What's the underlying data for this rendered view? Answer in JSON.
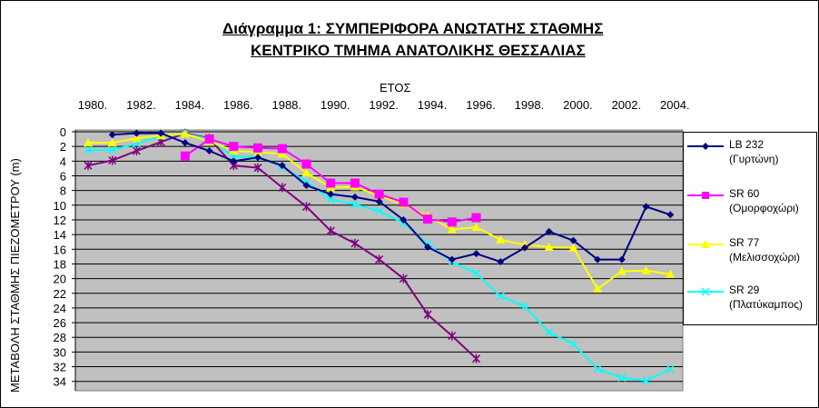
{
  "title_line1": "Διάγραμμα 1: ΣΥΜΠΕΡΙΦΟΡΑ ΑΝΩΤΑΤΗΣ ΣΤΑΘΜΗΣ",
  "title_line2": "ΚΕΝΤΡΙΚΟ ΤΜΗΜΑ ΑΝΑΤΟΛΙΚΗΣ ΘΕΣΣΑΛΙΑΣ",
  "chart_data": {
    "type": "line",
    "title": "Διάγραμμα 1: ΣΥΜΠΕΡΙΦΟΡΑ ΑΝΩΤΑΤΗΣ ΣΤΑΘΜΗΣ ΚΕΝΤΡΙΚΟ ΤΜΗΜΑ ΑΝΑΤΟΛΙΚΗΣ ΘΕΣΣΑΛΙΑΣ",
    "xlabel": "ΕΤΟΣ",
    "ylabel": "ΜΕΤΑΒΟΛΗ ΣΤΑΘΜΗΣ ΠΙΕΖΟΜΕΤΡΟΥ (m)",
    "x_ticks": [
      "1980.",
      "1982.",
      "1984.",
      "1986.",
      "1988.",
      "1990.",
      "1992.",
      "1994.",
      "1996.",
      "1998.",
      "2000.",
      "2002.",
      "2004."
    ],
    "y_ticks": [
      "0",
      "2",
      "4",
      "6",
      "8",
      "10",
      "12",
      "14",
      "16",
      "18",
      "20",
      "22",
      "24",
      "26",
      "28",
      "30",
      "32",
      "34"
    ],
    "xlim": [
      1980,
      2005
    ],
    "ylim": [
      0,
      35
    ],
    "y_inverted": true,
    "grid": "horizontal",
    "plot_background": "#c0c0c0",
    "legend_position": "right",
    "series": [
      {
        "name": "LB 232",
        "name_detail": "(Γυρτώνη)",
        "color": "#000080",
        "marker": "diamond",
        "x": [
          1981,
          1982,
          1983,
          1984,
          1985,
          1986,
          1987,
          1988,
          1989,
          1990,
          1991,
          1992,
          1993,
          1994,
          1995,
          1996,
          1997,
          1998,
          1999,
          2000,
          2001,
          2002,
          2003,
          2004
        ],
        "y": [
          0.4,
          0.2,
          0.2,
          1.5,
          2.6,
          4.0,
          3.5,
          4.6,
          7.3,
          8.5,
          8.9,
          9.5,
          12.0,
          15.7,
          17.4,
          16.6,
          17.7,
          15.8,
          13.6,
          14.8,
          17.4,
          17.4,
          10.2,
          11.3
        ]
      },
      {
        "name": "SR 60",
        "name_detail": "(Ομορφοχώρι)",
        "color": "#ff00ff",
        "marker": "square",
        "x": [
          1984,
          1985,
          1986,
          1987,
          1988,
          1989,
          1990,
          1991,
          1992,
          1993,
          1994,
          1995,
          1996
        ],
        "y": [
          3.3,
          1.0,
          2.0,
          2.2,
          2.3,
          4.4,
          7.0,
          7.0,
          8.5,
          9.6,
          11.9,
          12.3,
          11.7
        ]
      },
      {
        "name": "SR 77",
        "name_detail": "(Μελισσοχώρι)",
        "color": "#ffff00",
        "marker": "triangle",
        "x": [
          1980,
          1981,
          1982,
          1983,
          1984,
          1985,
          1986,
          1987,
          1988,
          1989,
          1990,
          1991,
          1992,
          1993,
          1994,
          1995,
          1996,
          1997,
          1998,
          1999,
          2000,
          2001,
          2002,
          2003,
          2004
        ],
        "y": [
          1.5,
          1.5,
          0.9,
          0.5,
          0.3,
          1.3,
          2.6,
          2.8,
          3.0,
          5.6,
          7.6,
          7.5,
          8.7,
          9.9,
          11.5,
          13.3,
          13.0,
          14.7,
          15.4,
          15.7,
          15.8,
          21.4,
          19.0,
          18.9,
          19.4
        ]
      },
      {
        "name": "SR 29",
        "name_detail": "(Πλατύκαμπος)",
        "color": "#00ffff",
        "marker": "asterisk",
        "x": [
          1980,
          1981,
          1982,
          1983,
          1984,
          1985,
          1986,
          1987,
          1988,
          1989,
          1990,
          1991,
          1992,
          1993,
          1994,
          1995,
          1996,
          1997,
          1998,
          1999,
          2000,
          2001,
          2002,
          2003,
          2004
        ],
        "y": [
          2.5,
          2.5,
          1.6,
          0.6,
          0.3,
          1.0,
          3.4,
          3.4,
          4.8,
          6.8,
          9.2,
          9.9,
          10.8,
          12.4,
          15.3,
          17.7,
          19.3,
          22.4,
          23.8,
          27.3,
          28.9,
          32.3,
          33.5,
          33.9,
          32.3
        ]
      },
      {
        "name": "",
        "color": "#800080",
        "marker": "star",
        "x": [
          1980,
          1981,
          1982,
          1983,
          1984,
          1985,
          1986,
          1987,
          1988,
          1989,
          1990,
          1991,
          1992,
          1993,
          1994,
          1995,
          1996
        ],
        "y": [
          4.6,
          3.9,
          2.6,
          1.4,
          0.2,
          0.9,
          4.6,
          4.9,
          7.6,
          10.2,
          13.5,
          15.2,
          17.4,
          20.0,
          24.9,
          27.8,
          30.9
        ]
      }
    ]
  }
}
